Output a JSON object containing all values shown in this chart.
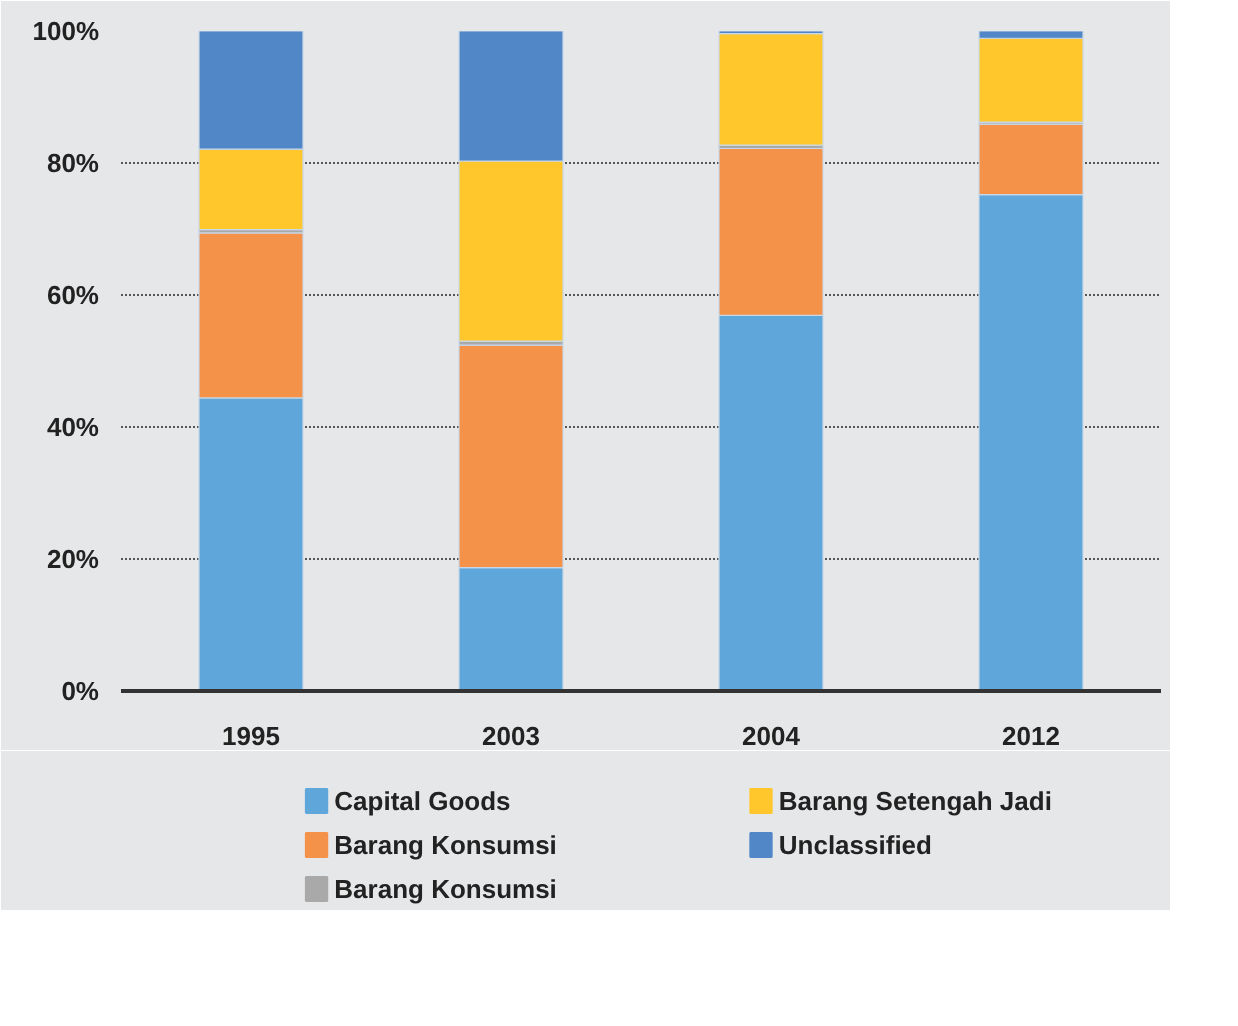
{
  "chart_data": {
    "type": "bar",
    "stacked": true,
    "categories": [
      "1995",
      "2003",
      "2004",
      "2012"
    ],
    "series": [
      {
        "name": "Capital Goods",
        "color": "#5fa7da",
        "values": [
          44.4,
          18.7,
          56.9,
          75.2
        ]
      },
      {
        "name": "Barang Konsumsi",
        "color": "#f5924a",
        "values": [
          25.0,
          33.7,
          25.3,
          10.7
        ]
      },
      {
        "name": "Barang Konsumsi",
        "color": "#a9a9a9",
        "values": [
          0.5,
          0.6,
          0.5,
          0.3
        ]
      },
      {
        "name": "Barang Setengah Jadi",
        "color": "#ffc72c",
        "values": [
          12.2,
          27.3,
          16.9,
          12.7
        ]
      },
      {
        "name": "Unclassified",
        "color": "#5187c6",
        "values": [
          17.9,
          19.7,
          0.4,
          1.1
        ]
      }
    ],
    "ylim": [
      0,
      100
    ],
    "yticks": [
      {
        "value": 0,
        "label": "0%"
      },
      {
        "value": 20,
        "label": "20%"
      },
      {
        "value": 40,
        "label": "40%"
      },
      {
        "value": 60,
        "label": "60%"
      },
      {
        "value": 80,
        "label": "80%"
      },
      {
        "value": 100,
        "label": "100%"
      }
    ],
    "grid": "y",
    "legend": "bottom"
  }
}
